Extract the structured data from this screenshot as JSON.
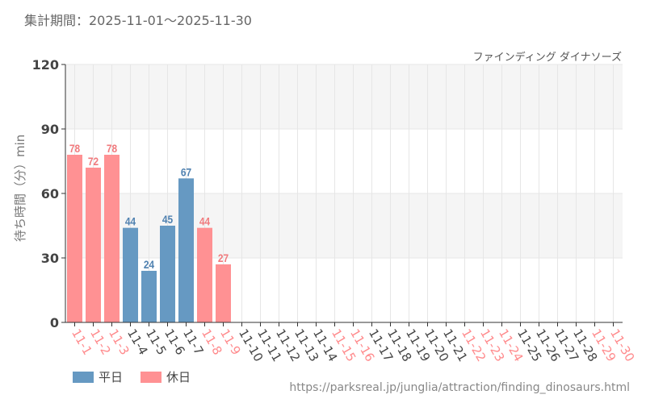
{
  "header": {
    "period": "集計期間：2025-11-01～2025-11-30",
    "attraction": "ファインディング ダイナソーズ"
  },
  "footer": {
    "url": "https://parksreal.jp/junglia/attraction/finding_dinosaurs.html"
  },
  "chart_data": {
    "type": "bar",
    "ylabel": "待ち時間（分）min",
    "ylim": [
      0,
      120
    ],
    "yticks": [
      0,
      30,
      60,
      90,
      120
    ],
    "grid": true,
    "legend_placement": "bottom-left",
    "legend": [
      {
        "name": "平日",
        "color": "#6699c2"
      },
      {
        "name": "休日",
        "color": "#ff9193"
      }
    ],
    "categories": [
      "11-1",
      "11-2",
      "11-3",
      "11-4",
      "11-5",
      "11-6",
      "11-7",
      "11-8",
      "11-9",
      "11-10",
      "11-11",
      "11-12",
      "11-13",
      "11-14",
      "11-15",
      "11-16",
      "11-17",
      "11-18",
      "11-19",
      "11-20",
      "11-21",
      "11-22",
      "11-23",
      "11-24",
      "11-25",
      "11-26",
      "11-27",
      "11-28",
      "11-29",
      "11-30"
    ],
    "holidays": [
      "11-1",
      "11-2",
      "11-3",
      "11-8",
      "11-9",
      "11-15",
      "11-16",
      "11-22",
      "11-23",
      "11-24",
      "11-29",
      "11-30"
    ],
    "values": [
      78,
      72,
      78,
      44,
      24,
      45,
      67,
      44,
      27,
      null,
      null,
      null,
      null,
      null,
      null,
      null,
      null,
      null,
      null,
      null,
      null,
      null,
      null,
      null,
      null,
      null,
      null,
      null,
      null,
      null
    ],
    "colors": {
      "weekday": "#6699c2",
      "holiday": "#ff9193",
      "weekday_label": "#4f81b0",
      "holiday_label": "#f07a7d",
      "holiday_tick": "#ff8a8c",
      "tick": "#444"
    }
  }
}
